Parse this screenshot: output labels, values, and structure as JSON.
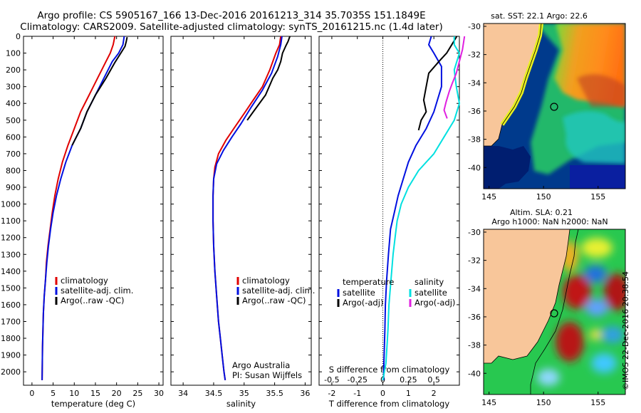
{
  "header": {
    "line1": "Argo profile: CS 5905167_166 13-Dec-2016 20161213_314 35.7035S 151.1849E",
    "line2": "Climatology: CARS2009. Satellite-adjusted climatology: synTS_20161215.nc (1.4d later)"
  },
  "stamp": "©IMOS 22-Dec-2016 20:38:54",
  "colors": {
    "climatology": "#e00000",
    "satellite": "#0010e0",
    "argo": "#000000",
    "sat_salinity": "#00e0e0",
    "argo_salinity": "#e020e0",
    "land": "#f8c69a"
  },
  "chart_data": [
    {
      "type": "line",
      "xlabel": "temperature (deg C)",
      "ylabel": "",
      "xlim": [
        -2,
        31
      ],
      "ylim": [
        2080,
        0
      ],
      "x_ticks": [
        0,
        5,
        10,
        15,
        20,
        25,
        30
      ],
      "y_ticks": [
        0,
        100,
        200,
        300,
        400,
        500,
        600,
        700,
        800,
        900,
        1000,
        1100,
        1200,
        1300,
        1400,
        1500,
        1600,
        1700,
        1800,
        1900,
        2000
      ],
      "legend_position": "lower-center",
      "series": [
        {
          "name": "climatology",
          "color": "#e00000",
          "x": [
            19.6,
            19.2,
            18.5,
            17.5,
            15.5,
            13.5,
            11.5,
            10.0,
            8.5,
            7.2,
            6.2,
            5.4,
            4.8,
            4.3,
            3.8,
            3.4,
            3.2,
            2.9,
            2.7,
            2.6,
            2.5,
            2.4
          ],
          "y": [
            0,
            50,
            100,
            150,
            250,
            350,
            450,
            550,
            650,
            750,
            850,
            950,
            1050,
            1150,
            1250,
            1350,
            1450,
            1550,
            1650,
            1750,
            1850,
            2050
          ]
        },
        {
          "name": "satellite-adj. clim.",
          "color": "#0010e0",
          "x": [
            21.8,
            21.5,
            20.5,
            19.0,
            17.0,
            15.0,
            13.0,
            11.5,
            9.5,
            8.0,
            6.8,
            5.8,
            5.0,
            4.4,
            3.9,
            3.5,
            3.2,
            2.9,
            2.7,
            2.6,
            2.5,
            2.4
          ],
          "y": [
            0,
            50,
            100,
            150,
            250,
            350,
            450,
            550,
            650,
            750,
            850,
            950,
            1050,
            1150,
            1250,
            1350,
            1450,
            1550,
            1650,
            1750,
            1850,
            2050
          ]
        },
        {
          "name": "Argo(..raw -QC)",
          "color": "#000000",
          "x": [
            22.5,
            22.3,
            22.0,
            21.0,
            19.5,
            17.5,
            15.0,
            13.0,
            11.5,
            10.5,
            9.5
          ],
          "y": [
            5,
            30,
            60,
            100,
            160,
            250,
            350,
            450,
            550,
            600,
            650
          ]
        }
      ]
    },
    {
      "type": "line",
      "xlabel": "salinity",
      "ylabel": "",
      "xlim": [
        33.8,
        36.1
      ],
      "ylim": [
        2080,
        0
      ],
      "x_ticks": [
        34,
        34.5,
        35,
        35.5,
        36
      ],
      "legend_position": "lower-center",
      "annotation": [
        "Argo Australia",
        "PI: Susan Wijffels"
      ],
      "series": [
        {
          "name": "climatology",
          "color": "#e00000",
          "x": [
            35.6,
            35.58,
            35.52,
            35.42,
            35.3,
            35.15,
            35.0,
            34.85,
            34.7,
            34.58,
            34.52,
            34.5,
            34.49,
            34.49,
            34.5,
            34.52,
            34.55,
            34.58,
            34.61,
            34.64,
            34.67,
            34.69
          ],
          "y": [
            0,
            50,
            100,
            200,
            300,
            380,
            460,
            540,
            620,
            700,
            780,
            850,
            950,
            1100,
            1250,
            1400,
            1550,
            1700,
            1800,
            1900,
            2000,
            2050
          ]
        },
        {
          "name": "satellite-adj. clim.",
          "color": "#0010e0",
          "x": [
            35.62,
            35.6,
            35.55,
            35.45,
            35.3,
            35.12,
            34.95,
            34.8,
            34.66,
            34.55,
            34.5,
            34.49,
            34.49,
            34.5,
            34.52,
            34.55,
            34.58,
            34.61,
            34.64,
            34.67,
            34.69
          ],
          "y": [
            0,
            50,
            120,
            220,
            320,
            420,
            520,
            600,
            680,
            760,
            850,
            950,
            1100,
            1250,
            1400,
            1550,
            1700,
            1800,
            1900,
            2000,
            2050
          ]
        },
        {
          "name": "Argo(..raw -QC)",
          "color": "#000000",
          "x": [
            35.75,
            35.72,
            35.68,
            35.63,
            35.6,
            35.55,
            35.47,
            35.35,
            35.15,
            35.05
          ],
          "y": [
            0,
            30,
            60,
            100,
            150,
            200,
            250,
            350,
            450,
            500
          ]
        }
      ]
    },
    {
      "type": "line",
      "xlabel": "T difference from climatology",
      "xlabel_top": "S difference from climatology",
      "ylabel": "",
      "xlim": [
        -2.5,
        3.0
      ],
      "ylim": [
        2080,
        0
      ],
      "x_ticks": [
        -2,
        -1,
        0,
        1,
        2
      ],
      "x_ticks_top": [
        -0.5,
        -0.25,
        0,
        0.25,
        0.5
      ],
      "legend_temperature_title": "temperature",
      "legend_salinity_title": "salinity",
      "legend_position": "lower-center",
      "series": [
        {
          "name": "satellite",
          "group": "temperature",
          "color": "#0010e0",
          "x": [
            1.9,
            1.8,
            2.0,
            2.3,
            2.3,
            2.0,
            1.7,
            1.3,
            1.0,
            0.8,
            0.6,
            0.45,
            0.3,
            0.22,
            0.15,
            0.1,
            0.08,
            0.06,
            0.04,
            0.03
          ],
          "y": [
            0,
            50,
            100,
            180,
            300,
            450,
            550,
            650,
            750,
            850,
            950,
            1050,
            1150,
            1300,
            1450,
            1600,
            1750,
            1850,
            1950,
            2050
          ]
        },
        {
          "name": "Argo(-adj)",
          "group": "temperature",
          "color": "#000000",
          "x": [
            2.9,
            2.7,
            2.5,
            2.2,
            1.8,
            1.7,
            1.6,
            1.7,
            1.5,
            1.4
          ],
          "y": [
            0,
            50,
            100,
            150,
            220,
            300,
            380,
            450,
            500,
            560
          ]
        },
        {
          "name": "satellite",
          "group": "salinity",
          "color": "#00e0e0",
          "x": [
            0.7,
            0.7,
            0.75,
            0.7,
            0.72,
            0.75,
            0.7,
            0.6,
            0.5,
            0.35,
            0.25,
            0.18,
            0.14,
            0.12,
            0.1,
            0.08,
            0.06,
            0.05,
            0.04,
            0.03,
            0.0
          ],
          "y": [
            0,
            50,
            100,
            200,
            300,
            400,
            500,
            600,
            700,
            800,
            900,
            1000,
            1100,
            1200,
            1300,
            1450,
            1600,
            1750,
            1850,
            1950,
            2050
          ]
        },
        {
          "name": "Argo(-adj)",
          "group": "salinity",
          "color": "#e020e0",
          "x": [
            0.8,
            0.78,
            0.75,
            0.72,
            0.68,
            0.65,
            0.62,
            0.6,
            0.63
          ],
          "y": [
            0,
            80,
            150,
            220,
            280,
            330,
            390,
            440,
            490
          ]
        }
      ]
    },
    {
      "type": "heatmap",
      "title": "sat. SST: 22.1 Argo: 22.6",
      "x_ticks": [
        145,
        150,
        155
      ],
      "y_ticks": [
        -30,
        -32,
        -34,
        -36,
        -38,
        -40
      ],
      "xlim": [
        144.5,
        157.5
      ],
      "ylim": [
        -41.5,
        -29.8
      ],
      "marker": {
        "lon": 151.18,
        "lat": -35.7
      }
    },
    {
      "type": "heatmap",
      "title": "Altim. SLA: 0.21",
      "subtitle": "Argo h1000: NaN h2000: NaN",
      "x_ticks": [
        145,
        150,
        155
      ],
      "y_ticks": [
        -30,
        -32,
        -34,
        -36,
        -38,
        -40
      ],
      "xlim": [
        144.5,
        157.5
      ],
      "ylim": [
        -41.5,
        -29.8
      ],
      "marker": {
        "lon": 151.18,
        "lat": -35.7
      }
    }
  ]
}
